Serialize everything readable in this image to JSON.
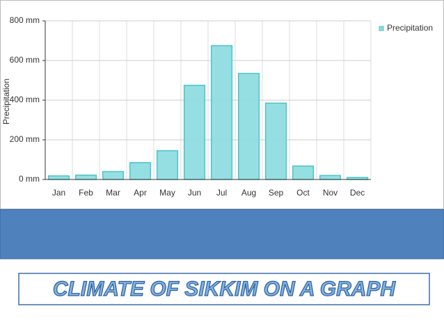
{
  "chart_data": {
    "type": "bar",
    "y_label": "Precipitation",
    "categories": [
      "Jan",
      "Feb",
      "Mar",
      "Apr",
      "May",
      "Jun",
      "Jul",
      "Aug",
      "Sep",
      "Oct",
      "Nov",
      "Dec"
    ],
    "series": [
      {
        "name": "Precipitation",
        "color": "#8fdde0",
        "values": [
          18,
          22,
          40,
          85,
          145,
          475,
          675,
          535,
          385,
          68,
          20,
          10
        ]
      }
    ],
    "ylim": [
      0,
      800
    ],
    "yticks": [
      {
        "value": 0,
        "label": "0 mm"
      },
      {
        "value": 200,
        "label": "200 mm"
      },
      {
        "value": 400,
        "label": "400 mm"
      },
      {
        "value": 600,
        "label": "600 mm"
      },
      {
        "value": 800,
        "label": "800 mm"
      }
    ],
    "grid": true,
    "legend": "right"
  },
  "slide_title": "CLIMATE OF SIKKIM ON A GRAPH"
}
